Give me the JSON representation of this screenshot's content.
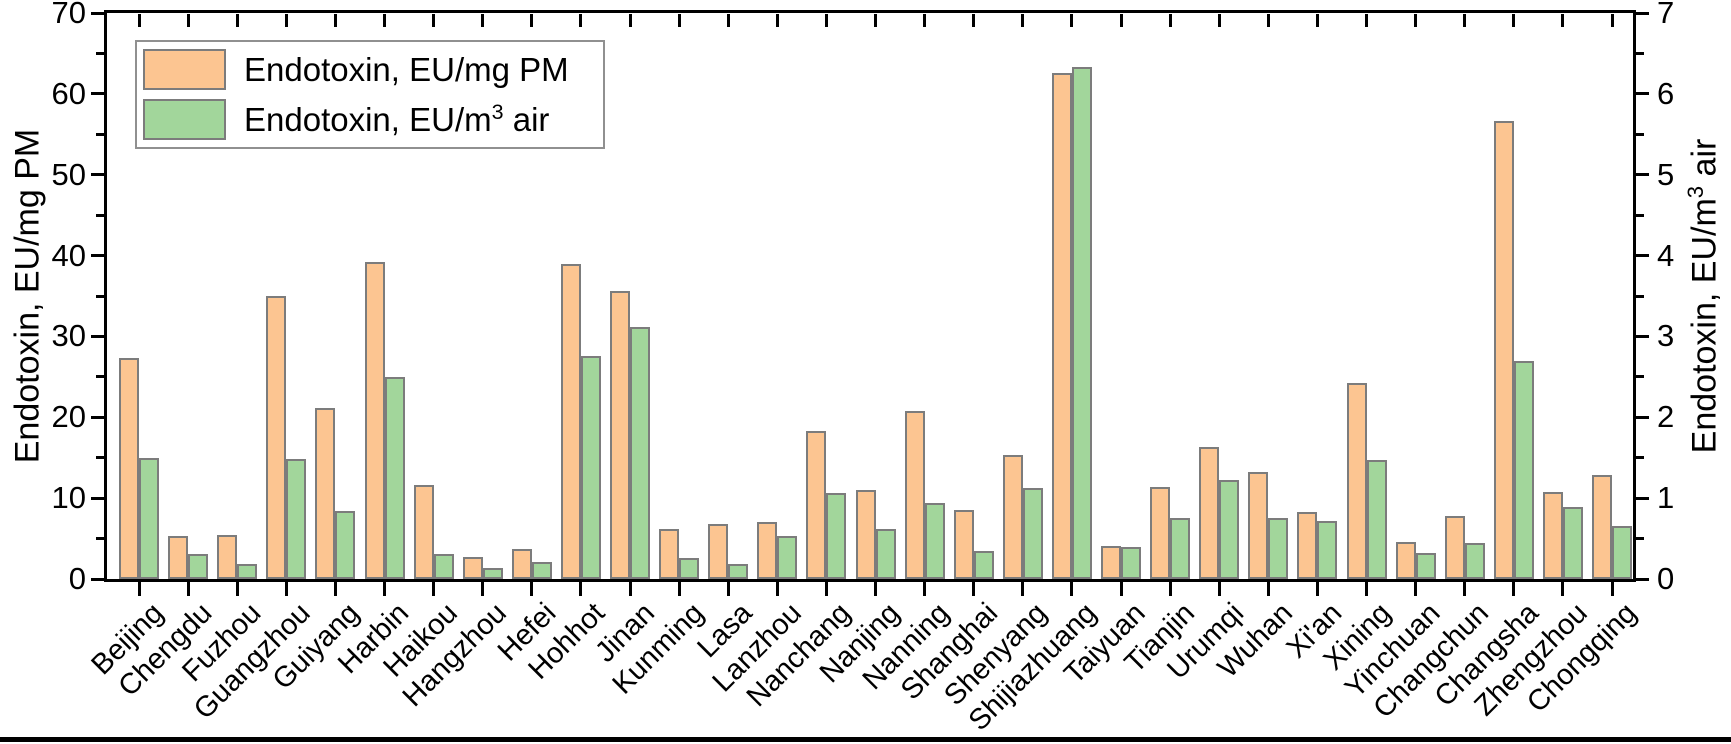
{
  "chart_data": {
    "type": "bar",
    "title": "",
    "categories": [
      "Beijing",
      "Chengdu",
      "Fuzhou",
      "Guangzhou",
      "Guiyang",
      "Harbin",
      "Haikou",
      "Hangzhou",
      "Hefei",
      "Hohhot",
      "Jinan",
      "Kunming",
      "Lasa",
      "Lanzhou",
      "Nanchang",
      "Nanjing",
      "Nanning",
      "Shanghai",
      "Shenyang",
      "Shijiazhuang",
      "Taiyuan",
      "Tianjin",
      "Urumqi",
      "Wuhan",
      "Xi'an",
      "Xining",
      "Yinchuan",
      "Changchun",
      "Changsha",
      "Zhengzhou",
      "Chongqing"
    ],
    "series": [
      {
        "name": "Endotoxin, EU/mg PM",
        "axis": "left",
        "color": "#FCC591",
        "edge_color": "#7C7C7C",
        "values": [
          27.3,
          5.3,
          5.5,
          35.0,
          21.1,
          39.2,
          11.6,
          2.7,
          3.7,
          38.9,
          35.6,
          6.2,
          6.8,
          7.0,
          18.3,
          11.0,
          20.8,
          8.5,
          15.3,
          62.6,
          4.1,
          11.4,
          16.3,
          13.2,
          8.3,
          24.2,
          4.6,
          7.8,
          56.7,
          10.7,
          12.9
        ]
      },
      {
        "name": "Endotoxin, EU/m³ air",
        "axis": "right",
        "color": "#A2D69B",
        "edge_color": "#7C7C7C",
        "values": [
          1.5,
          0.31,
          0.19,
          1.48,
          0.84,
          2.5,
          0.31,
          0.14,
          0.21,
          2.76,
          3.12,
          0.26,
          0.19,
          0.53,
          1.06,
          0.62,
          0.94,
          0.35,
          1.12,
          6.33,
          0.39,
          0.76,
          1.22,
          0.75,
          0.72,
          1.47,
          0.32,
          0.44,
          2.7,
          0.89,
          0.65
        ]
      }
    ],
    "left_axis": {
      "label": "Endotoxin, EU/mg PM",
      "min": 0,
      "max": 70,
      "major_ticks": [
        0,
        10,
        20,
        30,
        40,
        50,
        60,
        70
      ],
      "minor_step": 5
    },
    "right_axis": {
      "label": "Endotoxin, EU/m³ air",
      "min": 0,
      "max": 7,
      "major_ticks": [
        0,
        1,
        2,
        3,
        4,
        5,
        6,
        7
      ],
      "minor_step": 0.5
    },
    "legend": {
      "position": "top-left",
      "entries": [
        "Endotoxin, EU/mg PM",
        "Endotoxin, EU/m³ air"
      ]
    },
    "grid": false,
    "colors": {
      "axis": "#000000",
      "bar_orange": "#FCC591",
      "bar_green": "#A2D69B",
      "bar_edge": "#7C7C7C",
      "legend_border": "#909090"
    }
  }
}
